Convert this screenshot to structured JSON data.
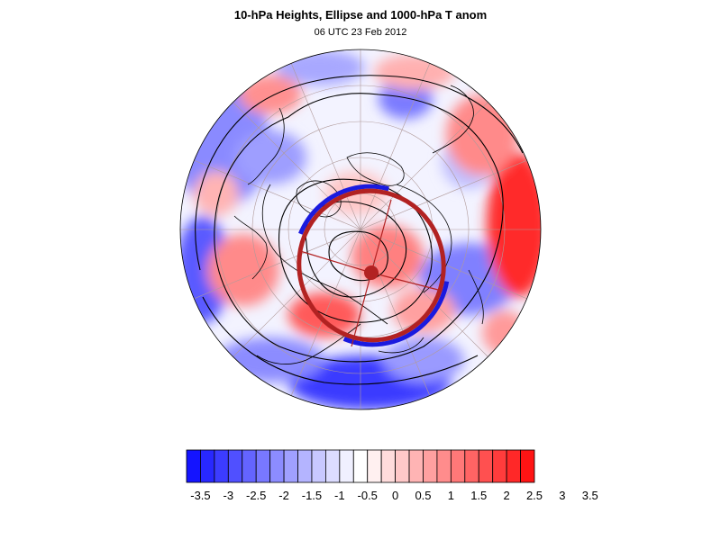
{
  "header": {
    "title": "10-hPa Heights, Ellipse and 1000-hPa T anom",
    "subtitle": "06 UTC 23 Feb 2012"
  },
  "colorbar": {
    "colors": [
      "#1414ff",
      "#2828ff",
      "#3c3cff",
      "#5050ff",
      "#6464ff",
      "#7878ff",
      "#8c8cff",
      "#a0a0ff",
      "#b4b4ff",
      "#c8c8ff",
      "#dcdcff",
      "#f0f0ff",
      "#ffffff",
      "#fff0f0",
      "#ffdcdc",
      "#ffc8c8",
      "#ffb4b4",
      "#ffa0a0",
      "#ff8c8c",
      "#ff7878",
      "#ff6464",
      "#ff5050",
      "#ff3c3c",
      "#ff2828",
      "#ff1414"
    ],
    "tick_labels": [
      "-3.5",
      "-3",
      "-2.5",
      "-2",
      "-1.5",
      "-1",
      "-0.5",
      "0",
      "0.5",
      "1",
      "1.5",
      "2",
      "2.5",
      "3",
      "3.5"
    ]
  },
  "map": {
    "projection": "north-polar-stereographic",
    "anomaly_colors": {
      "cold_strong": "#3a3aff",
      "cold_light": "#b8b8ff",
      "neutral": "#f4f4ff",
      "warm_light": "#ffc4c4",
      "warm_strong": "#ff2a2a"
    },
    "ellipse_color": "#b22222",
    "vortex_edge_color": "#1a1adf"
  }
}
